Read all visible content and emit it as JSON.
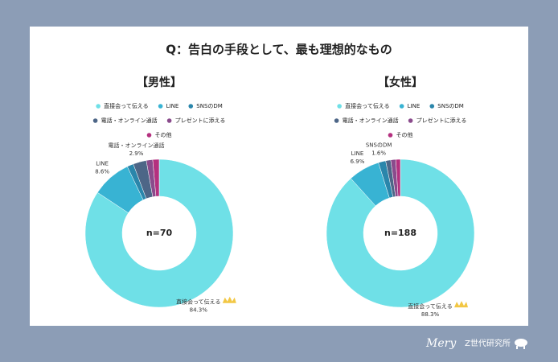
{
  "title": "Q：告白の手段として、最も理想的なもの",
  "footer": {
    "brand": "Mery",
    "org": "Z世代研究所"
  },
  "chart_data": [
    {
      "type": "donut",
      "title": "【男性】",
      "center_label": "n=70",
      "categories": [
        "直接会って伝える",
        "LINE",
        "SNSのDM",
        "電話・オンライン通話",
        "プレゼントに添える",
        "その他"
      ],
      "values": [
        84.3,
        8.6,
        1.4,
        2.9,
        1.4,
        1.4
      ],
      "value_labels": [
        "84.3%",
        "8.6%",
        null,
        "2.9%",
        null,
        null
      ],
      "colors": [
        "#6fe0e7",
        "#38b3d3",
        "#2a86ab",
        "#4d6687",
        "#8a4b8c",
        "#b4307f"
      ]
    },
    {
      "type": "donut",
      "title": "【女性】",
      "center_label": "n=188",
      "categories": [
        "直接会って伝える",
        "LINE",
        "SNSのDM",
        "電話・オンライン通話",
        "プレゼントに添える",
        "その他"
      ],
      "values": [
        88.3,
        6.9,
        1.6,
        1.1,
        1.1,
        1.0
      ],
      "value_labels": [
        "88.3%",
        "6.9%",
        "1.6%",
        null,
        null,
        null
      ],
      "colors": [
        "#6fe0e7",
        "#38b3d3",
        "#2a86ab",
        "#4d6687",
        "#8a4b8c",
        "#b4307f"
      ]
    }
  ]
}
